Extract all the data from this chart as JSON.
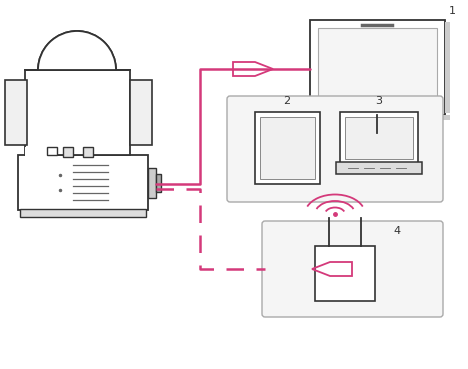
{
  "bg_color": "#ffffff",
  "pink": "#d4397a",
  "dark": "#333333",
  "mid": "#666666",
  "light_fill": "#f8f8f8",
  "fig_width": 4.68,
  "fig_height": 3.69,
  "dpi": 100
}
